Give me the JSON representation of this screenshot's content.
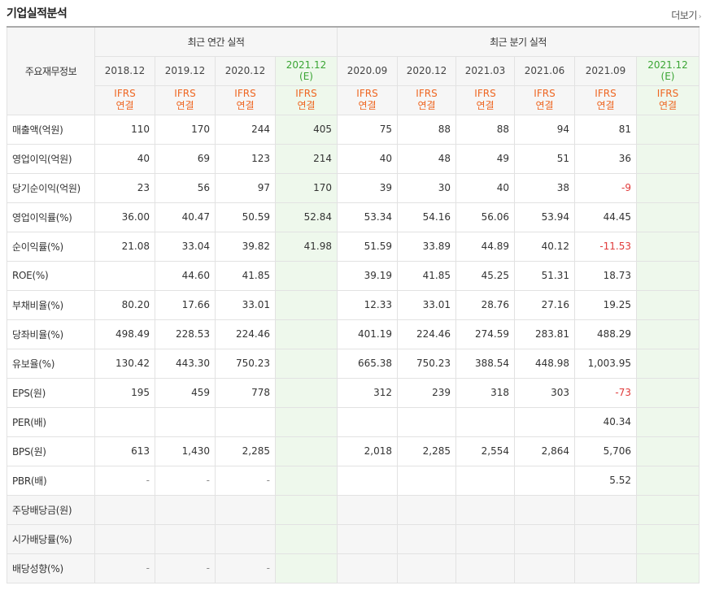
{
  "title": "기업실적분석",
  "more": "더보기",
  "header": {
    "label": "주요재무정보",
    "annual": "최근 연간 실적",
    "quarterly": "최근 분기 실적",
    "periods": [
      {
        "date": "2018.12",
        "sub": "",
        "est": false
      },
      {
        "date": "2019.12",
        "sub": "",
        "est": false
      },
      {
        "date": "2020.12",
        "sub": "",
        "est": false
      },
      {
        "date": "2021.12",
        "sub": "(E)",
        "est": true
      },
      {
        "date": "2020.09",
        "sub": "",
        "est": false
      },
      {
        "date": "2020.12",
        "sub": "",
        "est": false
      },
      {
        "date": "2021.03",
        "sub": "",
        "est": false
      },
      {
        "date": "2021.06",
        "sub": "",
        "est": false
      },
      {
        "date": "2021.09",
        "sub": "",
        "est": false
      },
      {
        "date": "2021.12",
        "sub": "(E)",
        "est": true
      }
    ],
    "ifrs1": "IFRS",
    "ifrs2": "연결"
  },
  "rows": [
    {
      "label": "매출액(억원)",
      "values": [
        "110",
        "170",
        "244",
        "405",
        "75",
        "88",
        "88",
        "94",
        "81",
        ""
      ]
    },
    {
      "label": "영업이익(억원)",
      "values": [
        "40",
        "69",
        "123",
        "214",
        "40",
        "48",
        "49",
        "51",
        "36",
        ""
      ]
    },
    {
      "label": "당기순이익(억원)",
      "values": [
        "23",
        "56",
        "97",
        "170",
        "39",
        "30",
        "40",
        "38",
        "-9",
        ""
      ]
    },
    {
      "label": "영업이익률(%)",
      "values": [
        "36.00",
        "40.47",
        "50.59",
        "52.84",
        "53.34",
        "54.16",
        "56.06",
        "53.94",
        "44.45",
        ""
      ]
    },
    {
      "label": "순이익률(%)",
      "values": [
        "21.08",
        "33.04",
        "39.82",
        "41.98",
        "51.59",
        "33.89",
        "44.89",
        "40.12",
        "-11.53",
        ""
      ]
    },
    {
      "label": "ROE(%)",
      "values": [
        "",
        "44.60",
        "41.85",
        "",
        "39.19",
        "41.85",
        "45.25",
        "51.31",
        "18.73",
        ""
      ]
    },
    {
      "label": "부채비율(%)",
      "values": [
        "80.20",
        "17.66",
        "33.01",
        "",
        "12.33",
        "33.01",
        "28.76",
        "27.16",
        "19.25",
        ""
      ]
    },
    {
      "label": "당좌비율(%)",
      "values": [
        "498.49",
        "228.53",
        "224.46",
        "",
        "401.19",
        "224.46",
        "274.59",
        "283.81",
        "488.29",
        ""
      ]
    },
    {
      "label": "유보율(%)",
      "values": [
        "130.42",
        "443.30",
        "750.23",
        "",
        "665.38",
        "750.23",
        "388.54",
        "448.98",
        "1,003.95",
        ""
      ]
    },
    {
      "label": "EPS(원)",
      "values": [
        "195",
        "459",
        "778",
        "",
        "312",
        "239",
        "318",
        "303",
        "-73",
        ""
      ]
    },
    {
      "label": "PER(배)",
      "values": [
        "",
        "",
        "",
        "",
        "",
        "",
        "",
        "",
        "40.34",
        ""
      ]
    },
    {
      "label": "BPS(원)",
      "values": [
        "613",
        "1,430",
        "2,285",
        "",
        "2,018",
        "2,285",
        "2,554",
        "2,864",
        "5,706",
        ""
      ]
    },
    {
      "label": "PBR(배)",
      "values": [
        "-",
        "-",
        "-",
        "",
        "",
        "",
        "",
        "",
        "5.52",
        ""
      ]
    },
    {
      "label": "주당배당금(원)",
      "values": [
        "",
        "",
        "",
        "",
        "",
        "",
        "",
        "",
        "",
        ""
      ]
    },
    {
      "label": "시가배당률(%)",
      "values": [
        "",
        "",
        "",
        "",
        "",
        "",
        "",
        "",
        "",
        ""
      ]
    },
    {
      "label": "배당성향(%)",
      "values": [
        "-",
        "-",
        "-",
        "",
        "",
        "",
        "",
        "",
        "",
        ""
      ]
    }
  ],
  "colors": {
    "ifrs": "#ee6622",
    "estimate_bg": "#eef8ec",
    "estimate_text": "#3aa534",
    "negative": "#e03a3a"
  }
}
